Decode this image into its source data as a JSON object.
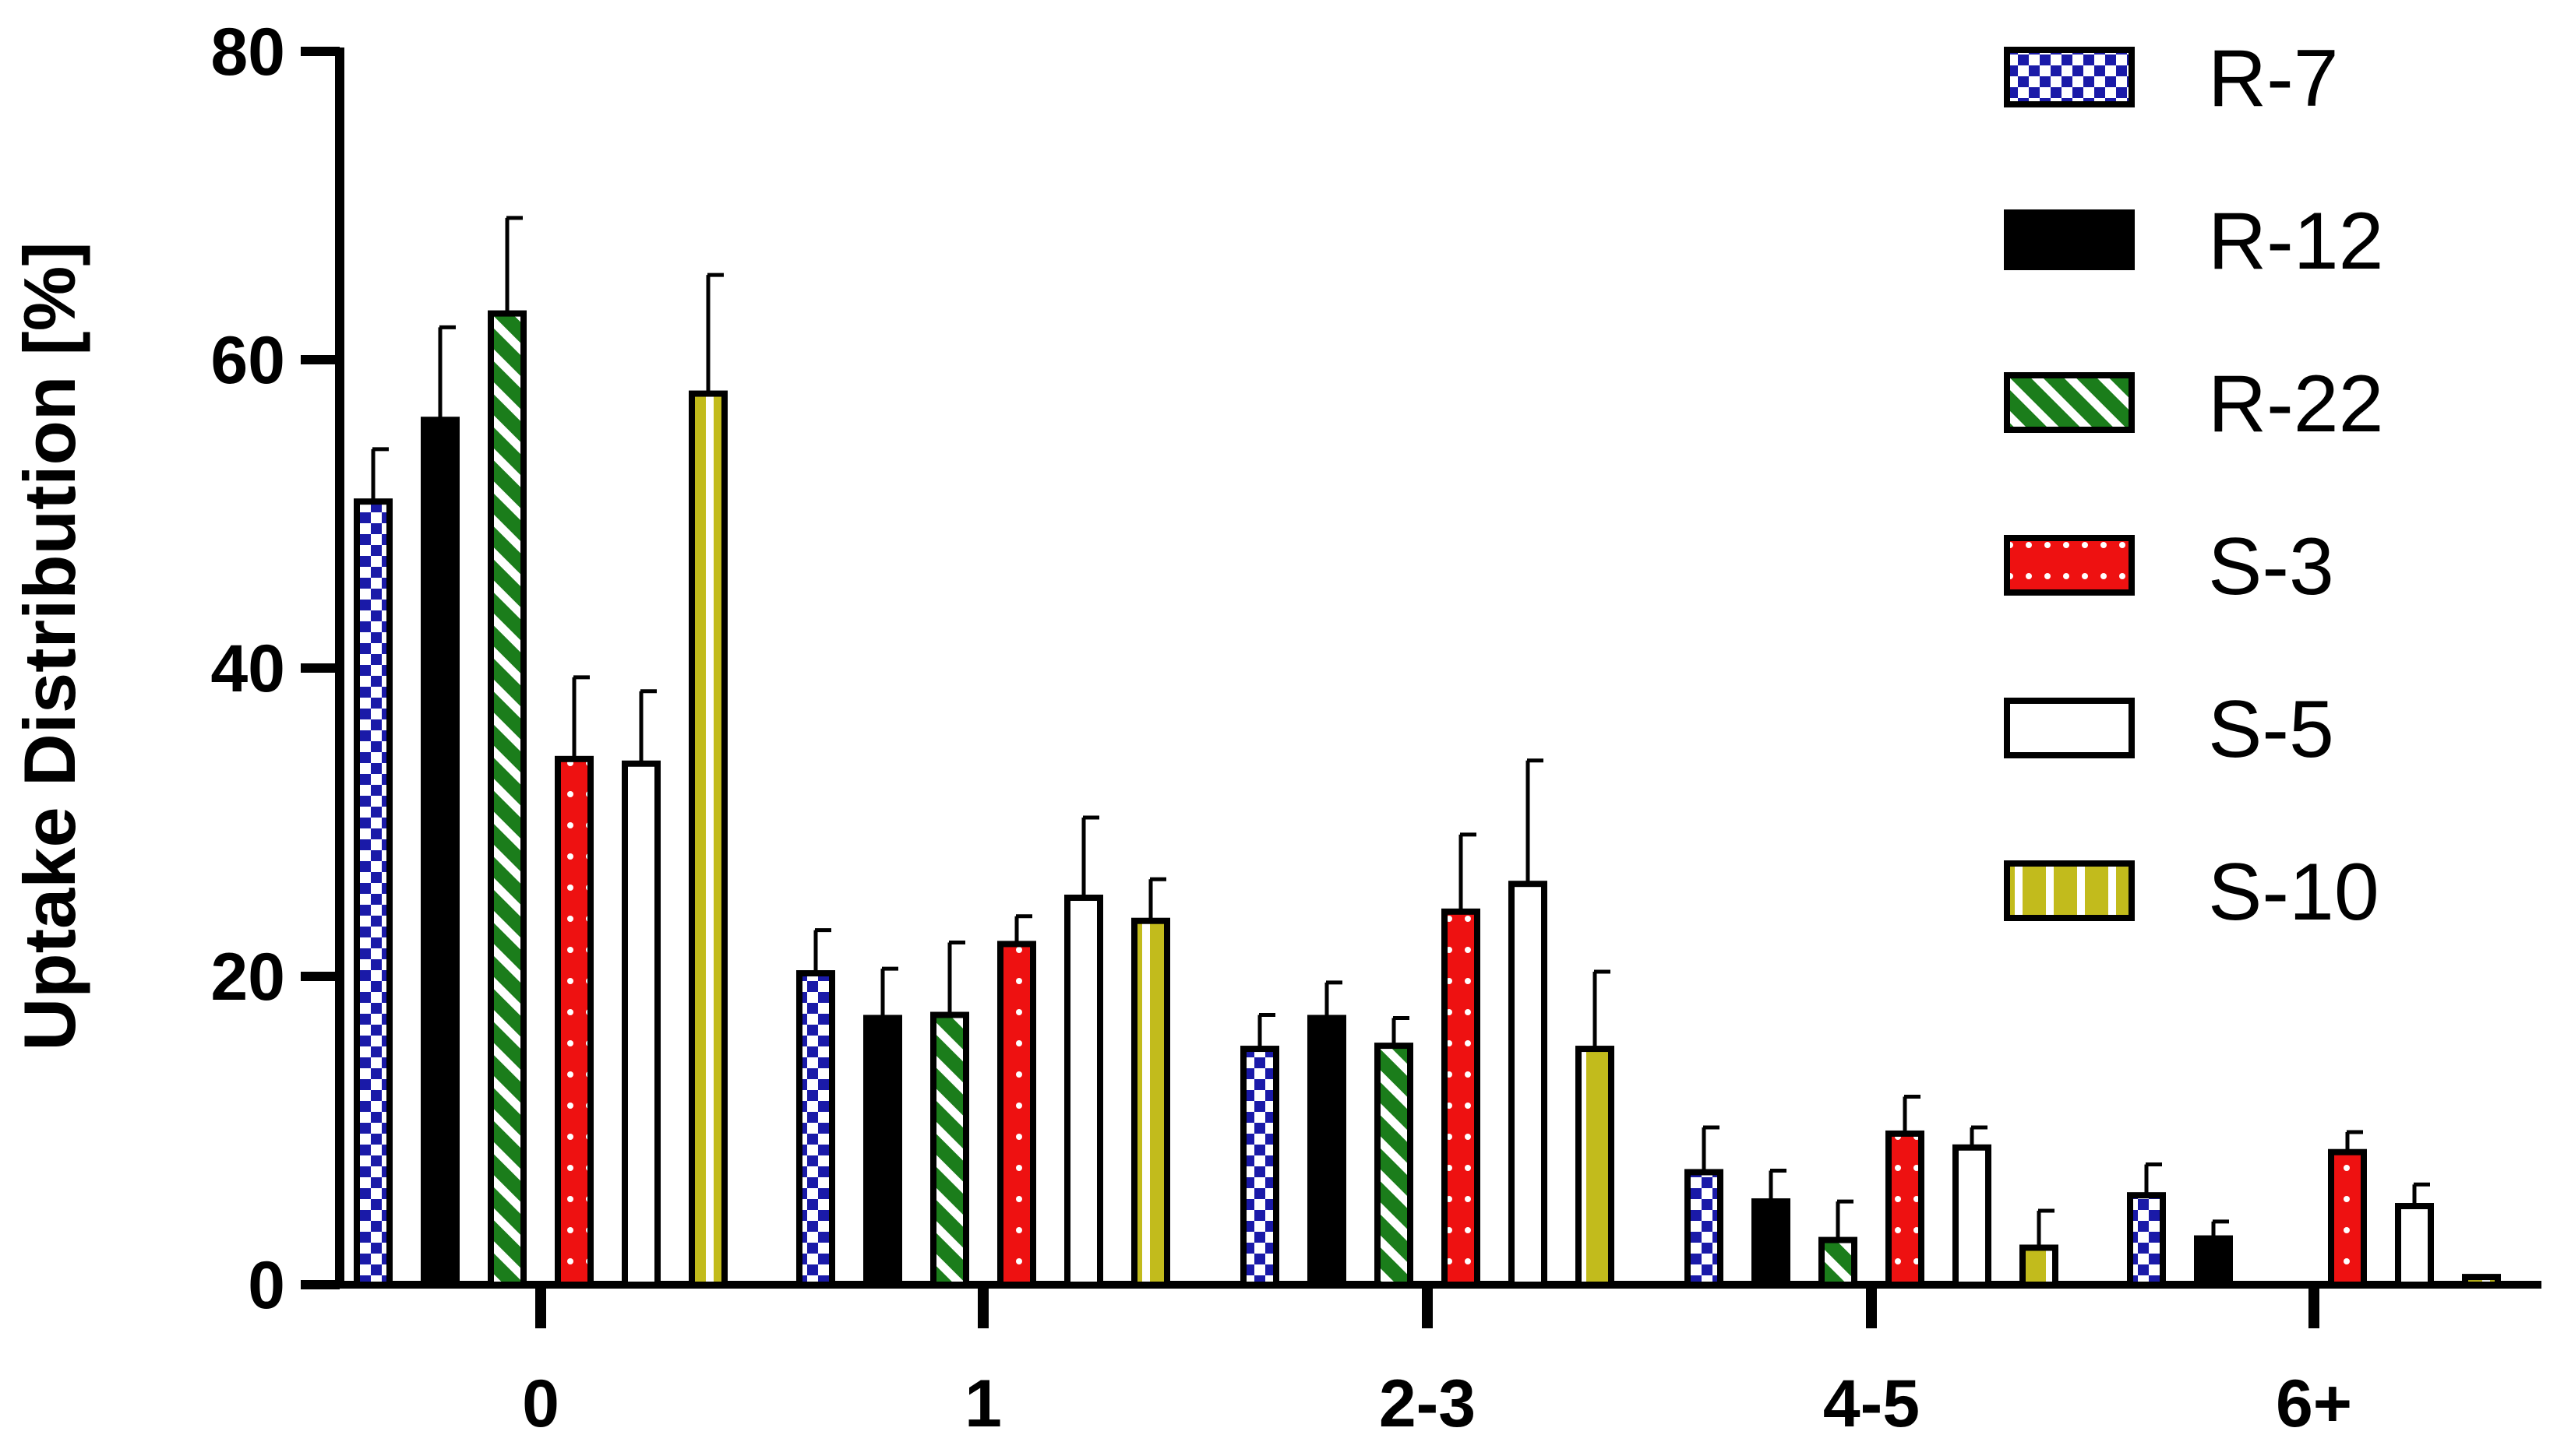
{
  "chart_data": {
    "type": "bar",
    "title": "",
    "xlabel": "",
    "ylabel": "Uptake Distribution [%]",
    "ylim": [
      0,
      80
    ],
    "yticks": [
      0,
      20,
      40,
      60,
      80
    ],
    "grid": false,
    "legend_position": "top-right",
    "error_bars": true,
    "categories": [
      "0",
      "1",
      "2-3",
      "4-5",
      "6+"
    ],
    "series": [
      {
        "name": "R-7",
        "pattern": "checker",
        "color": "#1a1aa8",
        "values": [
          50.8,
          20.2,
          15.3,
          7.3,
          5.8
        ],
        "errors": [
          3.4,
          2.8,
          2.2,
          2.9,
          2.0
        ]
      },
      {
        "name": "R-12",
        "pattern": "solid",
        "color": "#000000",
        "values": [
          56.1,
          17.3,
          17.3,
          5.4,
          3.0
        ],
        "errors": [
          6.0,
          3.2,
          2.3,
          2.0,
          1.1
        ]
      },
      {
        "name": "R-22",
        "pattern": "diagonal-stripes",
        "color": "#1b7d1b",
        "values": [
          63.0,
          17.5,
          15.5,
          2.9,
          0.0
        ],
        "errors": [
          6.2,
          4.7,
          1.8,
          2.5,
          0.0
        ]
      },
      {
        "name": "S-3",
        "pattern": "dots",
        "color": "#ee1111",
        "values": [
          34.1,
          22.1,
          24.2,
          9.8,
          8.6
        ],
        "errors": [
          5.3,
          1.8,
          5.0,
          2.4,
          1.3
        ]
      },
      {
        "name": "S-5",
        "pattern": "solid",
        "color": "#ffffff",
        "values": [
          33.8,
          25.1,
          26.0,
          8.9,
          5.1
        ],
        "errors": [
          4.7,
          5.2,
          8.0,
          1.3,
          1.4
        ]
      },
      {
        "name": "S-10",
        "pattern": "vertical-stripes",
        "color": "#c2bb1c",
        "values": [
          57.8,
          23.6,
          15.3,
          2.4,
          0.5
        ],
        "errors": [
          7.7,
          2.7,
          5.0,
          2.4,
          0.0
        ]
      }
    ]
  }
}
